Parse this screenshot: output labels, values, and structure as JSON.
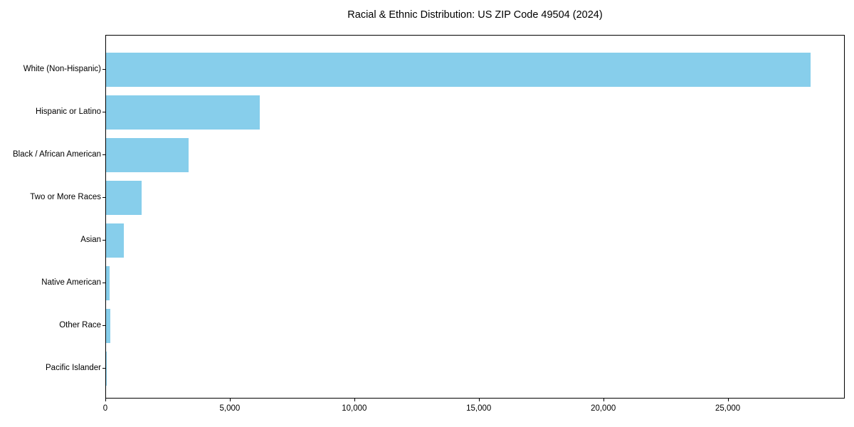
{
  "chart_data": {
    "type": "bar",
    "orientation": "horizontal",
    "title": "Racial & Ethnic Distribution: US ZIP Code 49504 (2024)",
    "categories": [
      "White (Non-Hispanic)",
      "Hispanic or Latino",
      "Black / African American",
      "Two or More Races",
      "Asian",
      "Native American",
      "Other Race",
      "Pacific Islander"
    ],
    "values": [
      28300,
      6170,
      3310,
      1430,
      710,
      140,
      165,
      15
    ],
    "xlabel": "",
    "ylabel": "",
    "xlim": [
      0,
      29700
    ],
    "xticks": [
      0,
      5000,
      10000,
      15000,
      20000,
      25000
    ],
    "xtick_labels": [
      "0",
      "5,000",
      "10,000",
      "15,000",
      "20,000",
      "25,000"
    ],
    "bar_color": "#87CEEB",
    "axis_color": "#000000",
    "background_color": "#ffffff",
    "grid": false,
    "legend_position": "none"
  }
}
